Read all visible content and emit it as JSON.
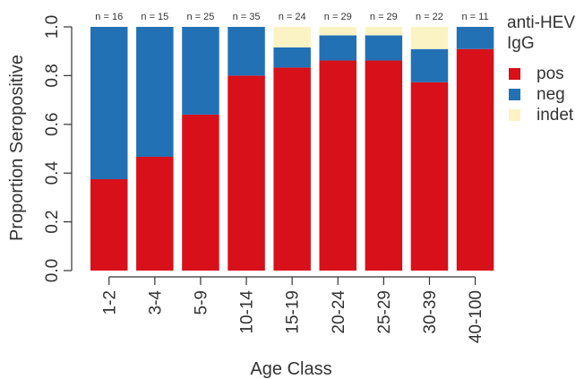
{
  "chart_data": {
    "type": "bar",
    "stacked": true,
    "xlabel": "Age Class",
    "ylabel": "Proportion Seropositive",
    "ylim": [
      0,
      1
    ],
    "yticks": [
      "0.0",
      "0.2",
      "0.4",
      "0.6",
      "0.8",
      "1.0"
    ],
    "categories": [
      "1-2",
      "3-4",
      "5-9",
      "10-14",
      "15-19",
      "20-24",
      "25-29",
      "30-39",
      "40-100"
    ],
    "n_labels": [
      "n = 16",
      "n = 15",
      "n = 25",
      "n = 35",
      "n = 24",
      "n = 29",
      "n = 29",
      "n = 22",
      "n = 11"
    ],
    "series": [
      {
        "name": "pos",
        "color": "#d7101a",
        "values": [
          0.375,
          0.467,
          0.64,
          0.8,
          0.833,
          0.862,
          0.862,
          0.773,
          0.909
        ]
      },
      {
        "name": "neg",
        "color": "#2271b5",
        "values": [
          0.625,
          0.533,
          0.36,
          0.2,
          0.083,
          0.103,
          0.103,
          0.136,
          0.091
        ]
      },
      {
        "name": "indet",
        "color": "#fbf3c4",
        "values": [
          0,
          0,
          0,
          0,
          0.084,
          0.035,
          0.035,
          0.091,
          0
        ]
      }
    ],
    "legend": {
      "title": "anti-HEV IgG",
      "title_lines": [
        "anti-HEV",
        "IgG"
      ],
      "placement": "right"
    }
  }
}
